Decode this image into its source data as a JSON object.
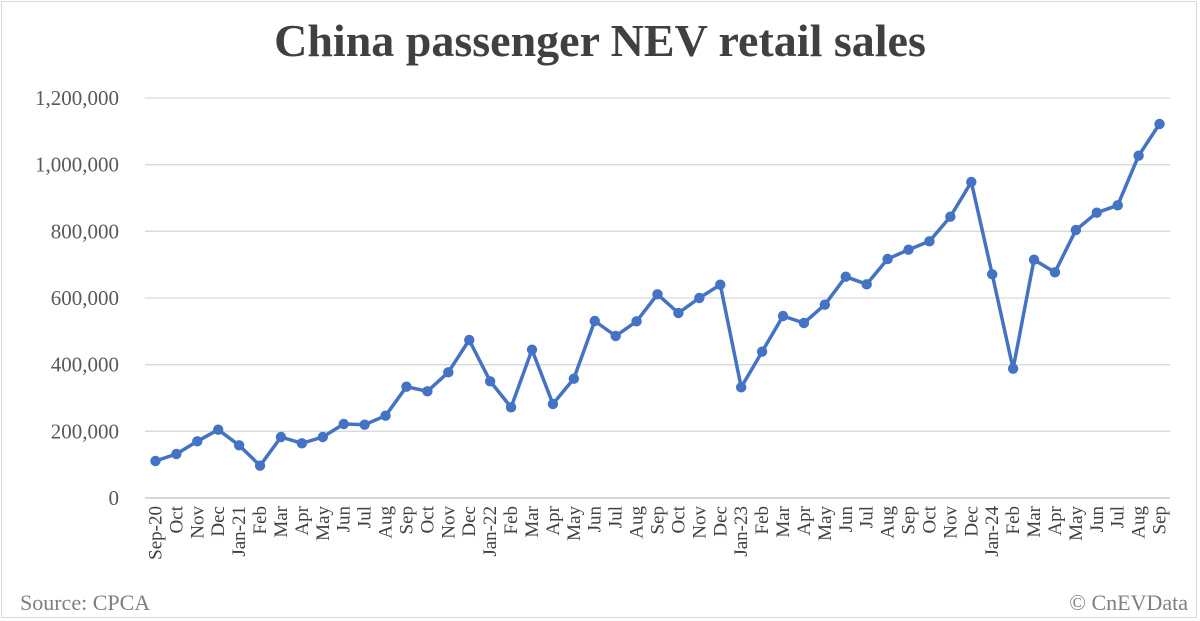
{
  "source_note": "Source: CPCA",
  "credit_note": "© CnEVData",
  "colors": {
    "series": "#4472c4",
    "grid": "#d9d9d9",
    "text": "#404040"
  },
  "chart_data": {
    "type": "line",
    "title": "China passenger NEV retail sales",
    "xlabel": "",
    "ylabel": "",
    "ylim": [
      0,
      1200000
    ],
    "yticks": [
      0,
      200000,
      400000,
      600000,
      800000,
      1000000,
      1200000
    ],
    "ytick_labels": [
      "0",
      "200,000",
      "400,000",
      "600,000",
      "800,000",
      "1,000,000",
      "1,200,000"
    ],
    "grid": true,
    "legend": "none",
    "categories": [
      "Sep-20",
      "Oct",
      "Nov",
      "Dec",
      "Jan-21",
      "Feb",
      "Mar",
      "Apr",
      "May",
      "Jun",
      "Jul",
      "Aug",
      "Sep",
      "Oct",
      "Nov",
      "Dec",
      "Jan-22",
      "Feb",
      "Mar",
      "Apr",
      "May",
      "Jun",
      "Jul",
      "Aug",
      "Sep",
      "Oct",
      "Nov",
      "Dec",
      "Jan-23",
      "Feb",
      "Mar",
      "Apr",
      "May",
      "Jun",
      "Jul",
      "Aug",
      "Sep",
      "Oct",
      "Nov",
      "Dec",
      "Jan-24",
      "Feb",
      "Mar",
      "Apr",
      "May",
      "Jun",
      "Jul",
      "Aug",
      "Sep"
    ],
    "series": [
      {
        "values": [
          111000,
          132000,
          170000,
          205000,
          158000,
          97000,
          183000,
          164000,
          183000,
          222000,
          220000,
          247000,
          334000,
          320000,
          377000,
          474000,
          350000,
          272000,
          445000,
          282000,
          358000,
          531000,
          486000,
          530000,
          611000,
          555000,
          600000,
          640000,
          332000,
          439000,
          546000,
          525000,
          580000,
          664000,
          641000,
          717000,
          745000,
          770000,
          844000,
          948000,
          671000,
          388000,
          715000,
          677000,
          804000,
          856000,
          878000,
          1027000,
          1122000
        ]
      }
    ]
  }
}
